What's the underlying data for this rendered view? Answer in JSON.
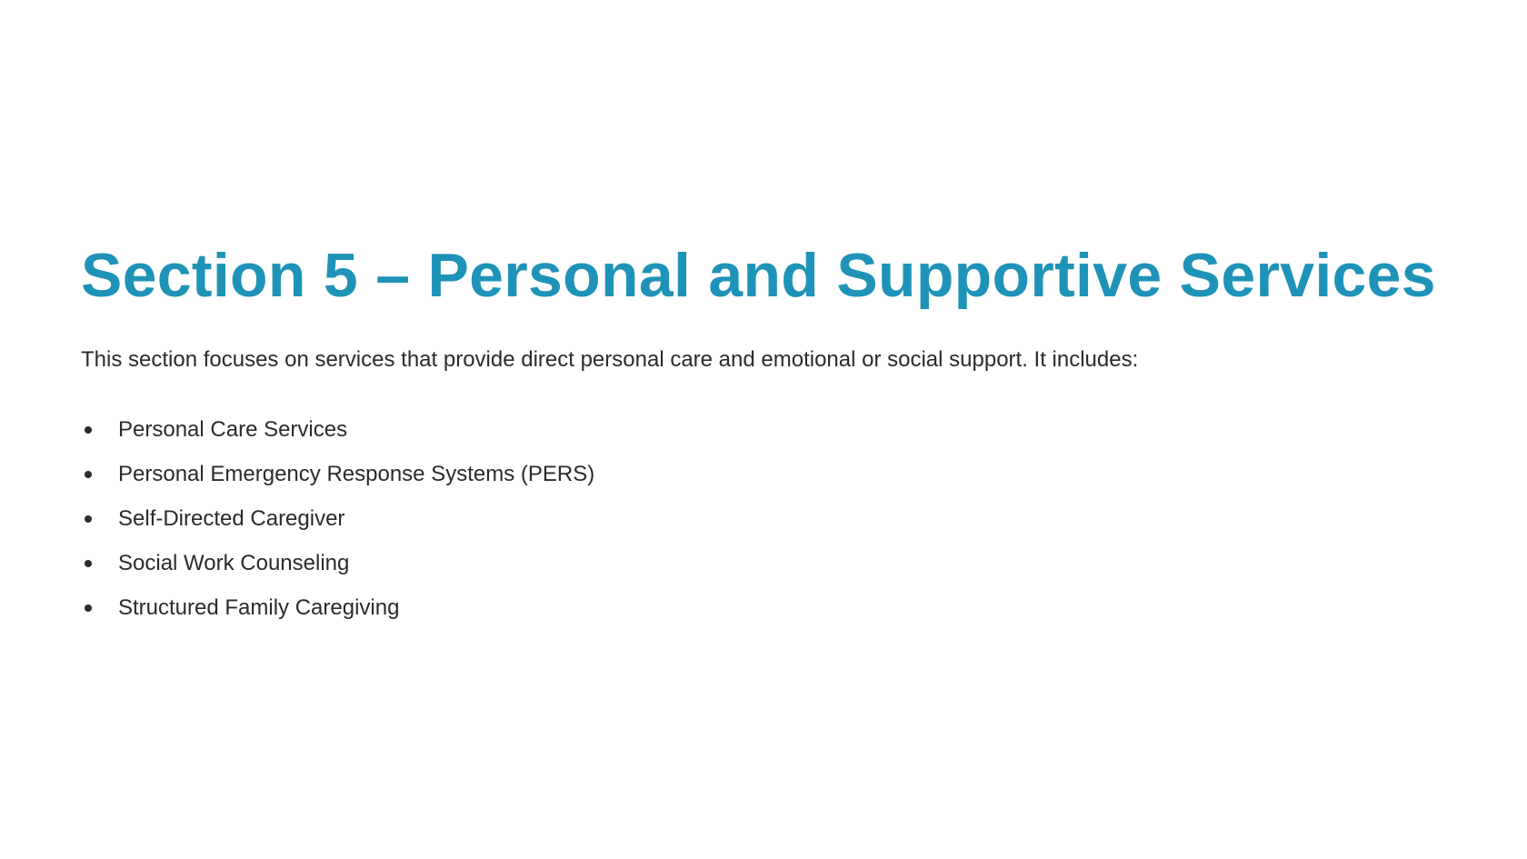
{
  "slide": {
    "title": "Section 5 – Personal and Supportive Services",
    "intro": "This section focuses on services that provide direct personal care and emotional or social support. It includes:",
    "services": [
      "Personal Care Services",
      "Personal Emergency Response Systems (PERS)",
      "Self-Directed Caregiver",
      "Social Work Counseling",
      "Structured Family Caregiving"
    ]
  },
  "colors": {
    "title": "#1f93b7",
    "body_text": "#2b2b2b",
    "background": "#ffffff"
  }
}
